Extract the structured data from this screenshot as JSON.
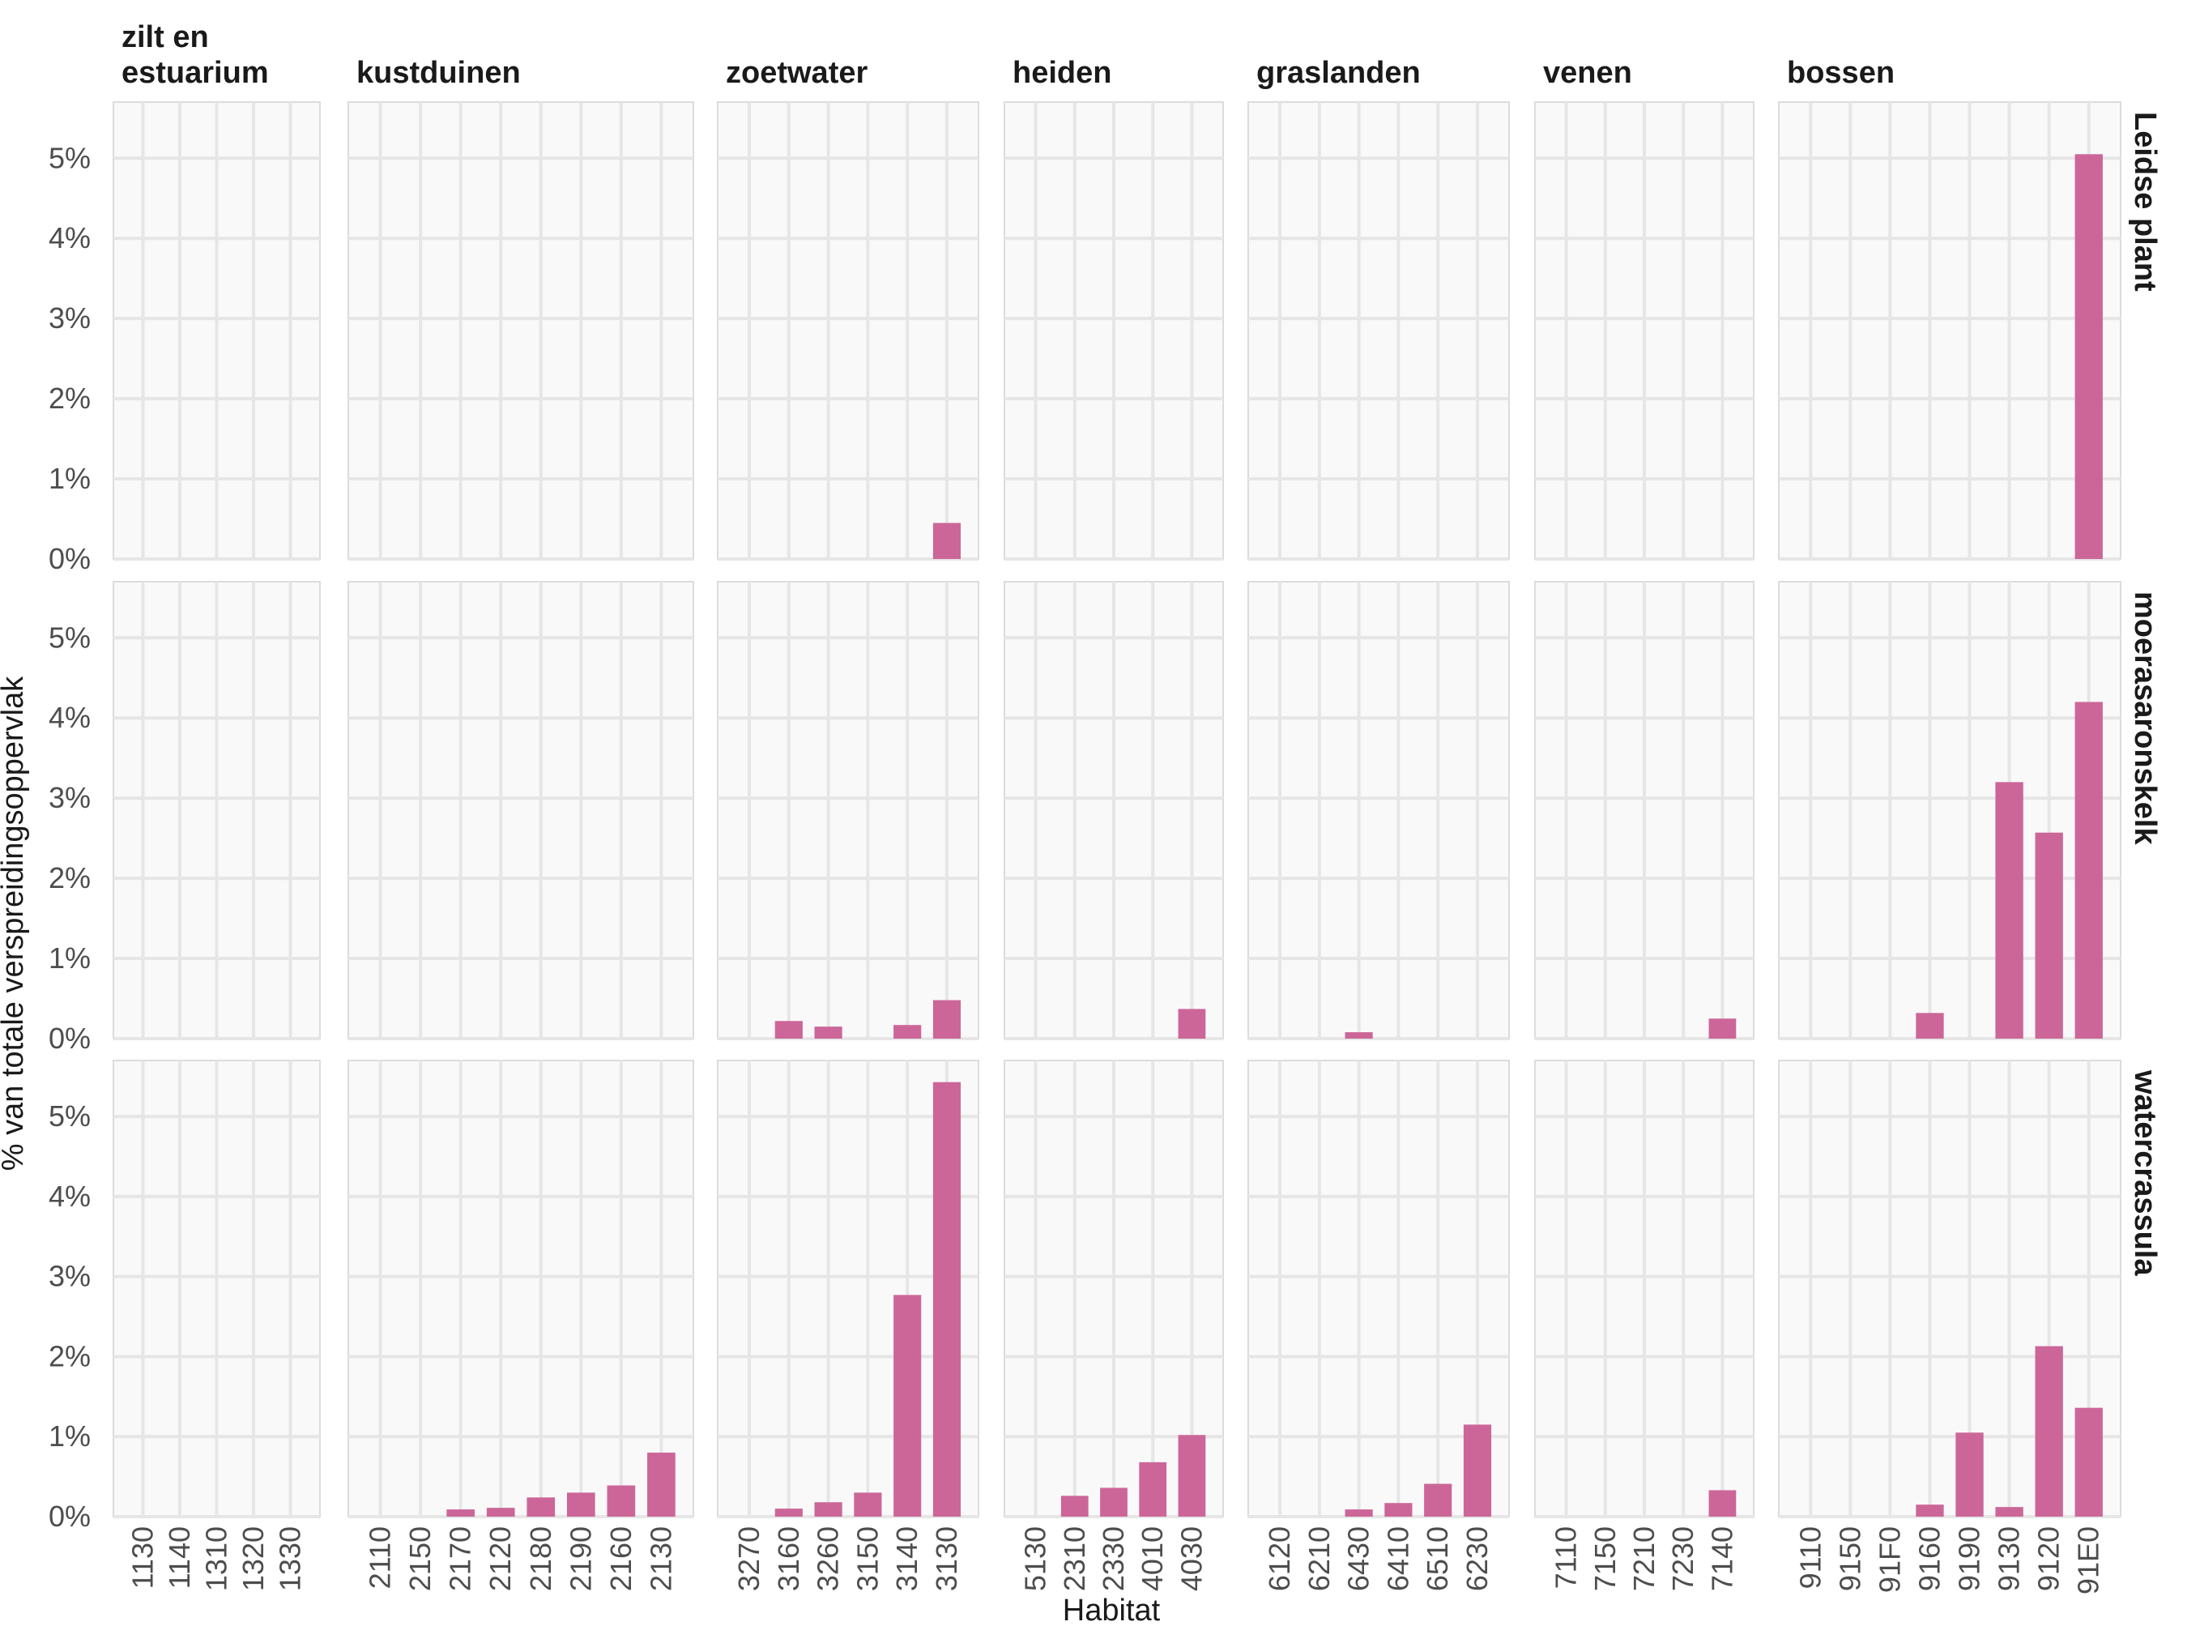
{
  "chart_data": {
    "type": "bar",
    "xlabel": "Habitat",
    "ylabel": "% van totale verspreidingsoppervlak",
    "ylim": [
      0,
      5.7
    ],
    "yticks": [
      0,
      1,
      2,
      3,
      4,
      5
    ],
    "ytick_labels": [
      "0%",
      "1%",
      "2%",
      "3%",
      "4%",
      "5%"
    ],
    "bar_color": "#cc6699",
    "panel_background": "#f9f9f9",
    "grid": true,
    "groups": [
      {
        "label": "zilt en\nestuarium",
        "categories": [
          "1130",
          "1140",
          "1310",
          "1320",
          "1330"
        ]
      },
      {
        "label": "kustduinen",
        "categories": [
          "2110",
          "2150",
          "2170",
          "2120",
          "2180",
          "2190",
          "2160",
          "2130"
        ]
      },
      {
        "label": "zoetwater",
        "categories": [
          "3270",
          "3160",
          "3260",
          "3150",
          "3140",
          "3130"
        ]
      },
      {
        "label": "heiden",
        "categories": [
          "5130",
          "2310",
          "2330",
          "4010",
          "4030"
        ]
      },
      {
        "label": "graslanden",
        "categories": [
          "6120",
          "6210",
          "6430",
          "6410",
          "6510",
          "6230"
        ]
      },
      {
        "label": "venen",
        "categories": [
          "7110",
          "7150",
          "7210",
          "7230",
          "7140"
        ]
      },
      {
        "label": "bossen",
        "categories": [
          "9110",
          "9150",
          "91F0",
          "9160",
          "9190",
          "9130",
          "9120",
          "91E0"
        ]
      }
    ],
    "series": [
      {
        "name": "Leidse plant",
        "values": [
          [
            0,
            0,
            0,
            0,
            0
          ],
          [
            0,
            0,
            0,
            0,
            0,
            0,
            0,
            0
          ],
          [
            0,
            0,
            0,
            0,
            0,
            0.45
          ],
          [
            0,
            0,
            0,
            0,
            0
          ],
          [
            0,
            0,
            0,
            0,
            0,
            0
          ],
          [
            0,
            0,
            0,
            0,
            0
          ],
          [
            0,
            0,
            0,
            0,
            0,
            0,
            0,
            5.05
          ]
        ]
      },
      {
        "name": "moerasaronskelk",
        "values": [
          [
            0,
            0,
            0,
            0,
            0
          ],
          [
            0,
            0,
            0,
            0,
            0,
            0,
            0,
            0
          ],
          [
            0,
            0.22,
            0.15,
            0,
            0.17,
            0.48
          ],
          [
            0,
            0,
            0,
            0,
            0.37
          ],
          [
            0,
            0,
            0.08,
            0,
            0,
            0
          ],
          [
            0,
            0,
            0,
            0,
            0.25
          ],
          [
            0,
            0,
            0,
            0.32,
            0,
            3.2,
            2.57,
            4.2
          ]
        ]
      },
      {
        "name": "watercrassula",
        "values": [
          [
            0,
            0,
            0,
            0,
            0
          ],
          [
            0,
            0,
            0.09,
            0.11,
            0.24,
            0.3,
            0.39,
            0.8
          ],
          [
            0,
            0.1,
            0.18,
            0.3,
            2.77,
            5.43
          ],
          [
            0,
            0.26,
            0.36,
            0.68,
            1.02
          ],
          [
            0,
            0,
            0.09,
            0.17,
            0.41,
            1.15
          ],
          [
            0,
            0,
            0,
            0,
            0.33
          ],
          [
            0,
            0,
            0,
            0.15,
            1.05,
            0.12,
            2.13,
            1.36
          ]
        ]
      }
    ]
  }
}
